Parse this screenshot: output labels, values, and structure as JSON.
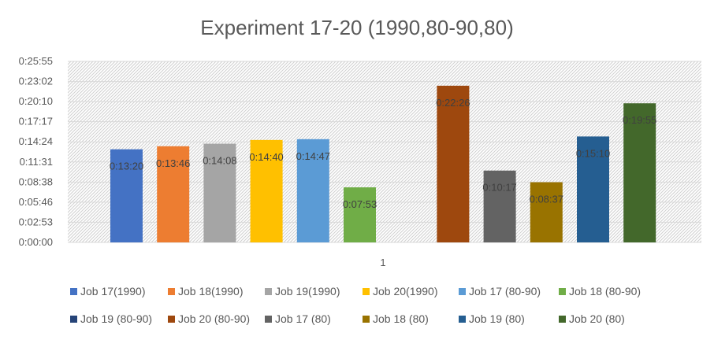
{
  "chart_data": {
    "type": "bar",
    "title": "Experiment 17-20 (1990,80-90,80)",
    "categories": [
      "1"
    ],
    "xlabel": "",
    "ylabel": "",
    "y_unit": "seconds",
    "ylim": [
      0,
      1555
    ],
    "y_ticks": [
      {
        "value": 0,
        "label": "0:00:00"
      },
      {
        "value": 173,
        "label": "0:02:53"
      },
      {
        "value": 346,
        "label": "0:05:46"
      },
      {
        "value": 518,
        "label": "0:08:38"
      },
      {
        "value": 691,
        "label": "0:11:31"
      },
      {
        "value": 864,
        "label": "0:14:24"
      },
      {
        "value": 1037,
        "label": "0:17:17"
      },
      {
        "value": 1210,
        "label": "0:20:10"
      },
      {
        "value": 1382,
        "label": "0:23:02"
      },
      {
        "value": 1555,
        "label": "0:25:55"
      }
    ],
    "grid": true,
    "legend_position": "bottom",
    "series": [
      {
        "name": "Job 17(1990)",
        "value": 800,
        "label": "0:13:20",
        "color": "#4472C4"
      },
      {
        "name": "Job 18(1990)",
        "value": 826,
        "label": "0:13:46",
        "color": "#ED7D31"
      },
      {
        "name": "Job 19(1990)",
        "value": 848,
        "label": "0:14:08",
        "color": "#A5A5A5"
      },
      {
        "name": "Job 20(1990)",
        "value": 880,
        "label": "0:14:40",
        "color": "#FFC000"
      },
      {
        "name": "Job 17 (80-90)",
        "value": 887,
        "label": "0:14:47",
        "color": "#5B9BD5"
      },
      {
        "name": "Job 18 (80-90)",
        "value": 473,
        "label": "0:07:53",
        "color": "#70AD47"
      },
      {
        "name": "Job 19 (80-90)",
        "value": 0,
        "label": "",
        "color": "#264478"
      },
      {
        "name": "Job 20 (80-90)",
        "value": 1346,
        "label": "0:22:26",
        "color": "#9E480E"
      },
      {
        "name": "Job 17 (80)",
        "value": 617,
        "label": "0:10:17",
        "color": "#636363"
      },
      {
        "name": "Job 18 (80)",
        "value": 517,
        "label": "0:08:37",
        "color": "#997300"
      },
      {
        "name": "Job 19 (80)",
        "value": 910,
        "label": "0:15:10",
        "color": "#255E91"
      },
      {
        "name": "Job 20 (80)",
        "value": 1195,
        "label": "0:19:55",
        "color": "#43682B"
      }
    ]
  }
}
